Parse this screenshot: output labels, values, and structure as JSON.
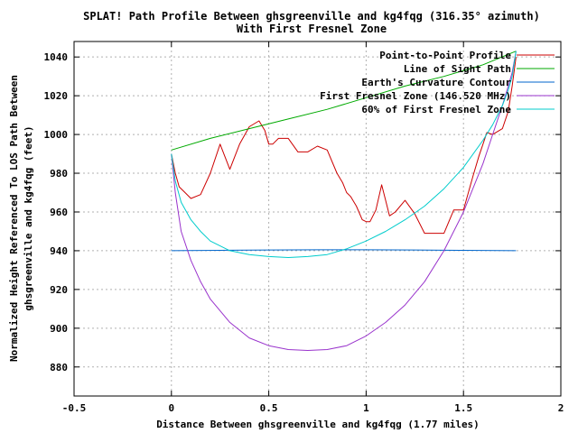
{
  "chart_data": {
    "type": "line",
    "title": "SPLAT! Path Profile Between ghsgreenville and kg4fqg (316.35° azimuth)",
    "subtitle": "With First Fresnel Zone",
    "xlabel": "Distance Between ghsgreenville and kg4fqg (1.77 miles)",
    "ylabel_lines": [
      "Normalized Height Referenced To LOS Path Between",
      "ghsgreenville and kg4fqg (feet)"
    ],
    "xlim": [
      -0.5,
      2
    ],
    "ylim": [
      865,
      1048
    ],
    "x_ticks": [
      -0.5,
      0,
      0.5,
      1,
      1.5,
      2
    ],
    "x_tick_labels": [
      "-0.5",
      "0",
      "0.5",
      "1",
      "1.5",
      "2"
    ],
    "y_ticks": [
      880,
      900,
      920,
      940,
      960,
      980,
      1000,
      1020,
      1040
    ],
    "y_tick_labels": [
      "880",
      "900",
      "920",
      "940",
      "960",
      "980",
      "1000",
      "1020",
      "1040"
    ],
    "grid": true,
    "legend_position": "top-right",
    "series": [
      {
        "name": "Point-to-Point Profile",
        "color": "#cc0000",
        "x": [
          0,
          0.02,
          0.04,
          0.07,
          0.1,
          0.15,
          0.2,
          0.25,
          0.3,
          0.35,
          0.4,
          0.45,
          0.48,
          0.5,
          0.52,
          0.55,
          0.6,
          0.65,
          0.7,
          0.75,
          0.8,
          0.85,
          0.88,
          0.9,
          0.92,
          0.95,
          0.98,
          1,
          1.02,
          1.05,
          1.08,
          1.1,
          1.12,
          1.15,
          1.2,
          1.25,
          1.3,
          1.35,
          1.4,
          1.45,
          1.5,
          1.55,
          1.58,
          1.6,
          1.62,
          1.65,
          1.7,
          1.73,
          1.75,
          1.77
        ],
        "y": [
          990,
          980,
          973,
          970,
          967,
          969,
          980,
          995,
          982,
          995,
          1004,
          1007,
          1002,
          995,
          995,
          998,
          998,
          991,
          991,
          994,
          992,
          980,
          975,
          970,
          968,
          963,
          956,
          955,
          955,
          961,
          974,
          966,
          958,
          960,
          966,
          959,
          949,
          949,
          949,
          961,
          961,
          979,
          989,
          995,
          1001,
          1000,
          1003,
          1012,
          1025,
          1040
        ]
      },
      {
        "name": "Line of Sight Path",
        "color": "#00aa00",
        "x": [
          0,
          0.2,
          0.4,
          0.6,
          0.8,
          1.0,
          1.2,
          1.4,
          1.6,
          1.77
        ],
        "y": [
          992,
          998,
          1003,
          1008,
          1013,
          1019,
          1025,
          1030,
          1036,
          1043
        ]
      },
      {
        "name": "Earth's Curvature Contour",
        "color": "#0066cc",
        "x": [
          0,
          0.25,
          0.5,
          0.75,
          1.0,
          1.25,
          1.5,
          1.77
        ],
        "y": [
          940,
          940.2,
          940.4,
          940.5,
          940.5,
          940.4,
          940.2,
          940
        ]
      },
      {
        "name": "First Fresnel Zone (146.520 MHz)",
        "color": "#9933cc",
        "x": [
          0,
          0.02,
          0.05,
          0.1,
          0.15,
          0.2,
          0.3,
          0.4,
          0.5,
          0.6,
          0.7,
          0.8,
          0.9,
          1.0,
          1.1,
          1.2,
          1.3,
          1.4,
          1.5,
          1.6,
          1.65,
          1.7,
          1.73,
          1.75,
          1.77
        ],
        "y": [
          990,
          970,
          950,
          935,
          924,
          915,
          903,
          895,
          891,
          889,
          888.5,
          889,
          891,
          896,
          903,
          912,
          924,
          940,
          960,
          985,
          1000,
          1015,
          1025,
          1032,
          1043
        ]
      },
      {
        "name": "60% of First Fresnel Zone",
        "color": "#00cccc",
        "x": [
          0,
          0.02,
          0.05,
          0.1,
          0.15,
          0.2,
          0.3,
          0.4,
          0.5,
          0.6,
          0.7,
          0.8,
          0.9,
          1.0,
          1.1,
          1.2,
          1.3,
          1.4,
          1.5,
          1.6,
          1.65,
          1.7,
          1.73,
          1.75,
          1.77
        ],
        "y": [
          990,
          976,
          965,
          956,
          950,
          945,
          940,
          938,
          937,
          936.5,
          937,
          938,
          941,
          945,
          950,
          956,
          963,
          972,
          983,
          997,
          1005,
          1015,
          1023,
          1030,
          1043
        ]
      }
    ]
  }
}
